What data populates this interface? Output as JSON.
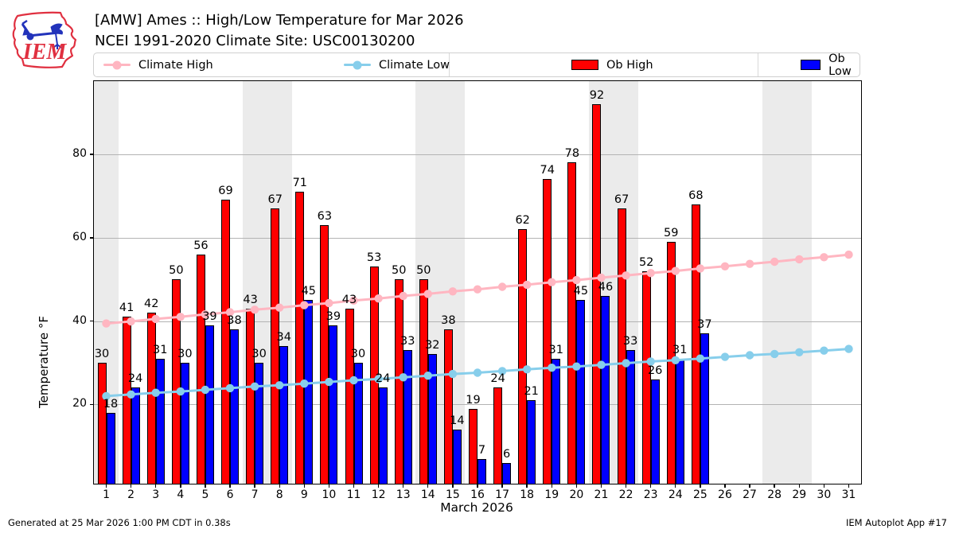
{
  "header": {
    "title_line1": "[AMW] Ames :: High/Low Temperature for Mar 2026",
    "title_line2": "NCEI 1991-2020 Climate Site: USC00130200",
    "logo_text": "IEM"
  },
  "legend": {
    "items": [
      {
        "label": "Climate High",
        "type": "line",
        "color": "#ffb6c1"
      },
      {
        "label": "Climate Low",
        "type": "line",
        "color": "#87ceeb"
      },
      {
        "label": "Ob High",
        "type": "bar",
        "color": "#ff0000"
      },
      {
        "label": "Ob Low",
        "type": "bar",
        "color": "#0000ff"
      }
    ]
  },
  "chart_data": {
    "type": "bar",
    "title": "[AMW] Ames :: High/Low Temperature for Mar 2026",
    "subtitle": "NCEI 1991-2020 Climate Site: USC00130200",
    "xlabel": "March 2026",
    "ylabel": "Temperature °F",
    "x": [
      1,
      2,
      3,
      4,
      5,
      6,
      7,
      8,
      9,
      10,
      11,
      12,
      13,
      14,
      15,
      16,
      17,
      18,
      19,
      20,
      21,
      22,
      23,
      24,
      25,
      26,
      27,
      28,
      29,
      30,
      31
    ],
    "series": [
      {
        "name": "Ob High",
        "type": "bar",
        "color": "#ff0000",
        "values": [
          30,
          41,
          42,
          50,
          56,
          69,
          43,
          67,
          71,
          63,
          43,
          53,
          50,
          50,
          38,
          19,
          24,
          62,
          74,
          78,
          92,
          67,
          52,
          59,
          68,
          null,
          null,
          null,
          null,
          null,
          null
        ]
      },
      {
        "name": "Ob Low",
        "type": "bar",
        "color": "#0000ff",
        "values": [
          18,
          24,
          31,
          30,
          39,
          38,
          30,
          34,
          45,
          39,
          30,
          24,
          33,
          32,
          14,
          7,
          6,
          21,
          31,
          45,
          46,
          33,
          26,
          31,
          37,
          null,
          null,
          null,
          null,
          null,
          null
        ]
      },
      {
        "name": "Climate High",
        "type": "line",
        "color": "#ffb6c1",
        "values": [
          39.4,
          39.9,
          40.5,
          41.0,
          41.6,
          42.1,
          42.7,
          43.2,
          43.8,
          44.3,
          44.9,
          45.4,
          46.0,
          46.5,
          47.1,
          47.6,
          48.2,
          48.7,
          49.3,
          49.8,
          50.4,
          50.9,
          51.5,
          52.0,
          52.6,
          53.1,
          53.7,
          54.2,
          54.8,
          55.3,
          55.9
        ]
      },
      {
        "name": "Climate Low",
        "type": "line",
        "color": "#87ceeb",
        "values": [
          22.0,
          22.4,
          22.8,
          23.1,
          23.5,
          23.9,
          24.3,
          24.6,
          25.0,
          25.4,
          25.8,
          26.1,
          26.5,
          26.9,
          27.3,
          27.6,
          28.0,
          28.4,
          28.8,
          29.1,
          29.5,
          29.9,
          30.3,
          30.6,
          31.0,
          31.4,
          31.8,
          32.1,
          32.5,
          32.9,
          33.3
        ]
      }
    ],
    "weekend_days": [
      1,
      7,
      8,
      14,
      15,
      21,
      22,
      28,
      29
    ],
    "weekend_band_color": "#ebebeb",
    "grid": true,
    "yticks": [
      20,
      40,
      60,
      80
    ],
    "ylim": [
      1,
      97.5
    ],
    "legend_position": "top"
  },
  "footer": {
    "left": "Generated at 25 Mar 2026 1:00 PM CDT in 0.38s",
    "right": "IEM Autoplot App #17"
  }
}
